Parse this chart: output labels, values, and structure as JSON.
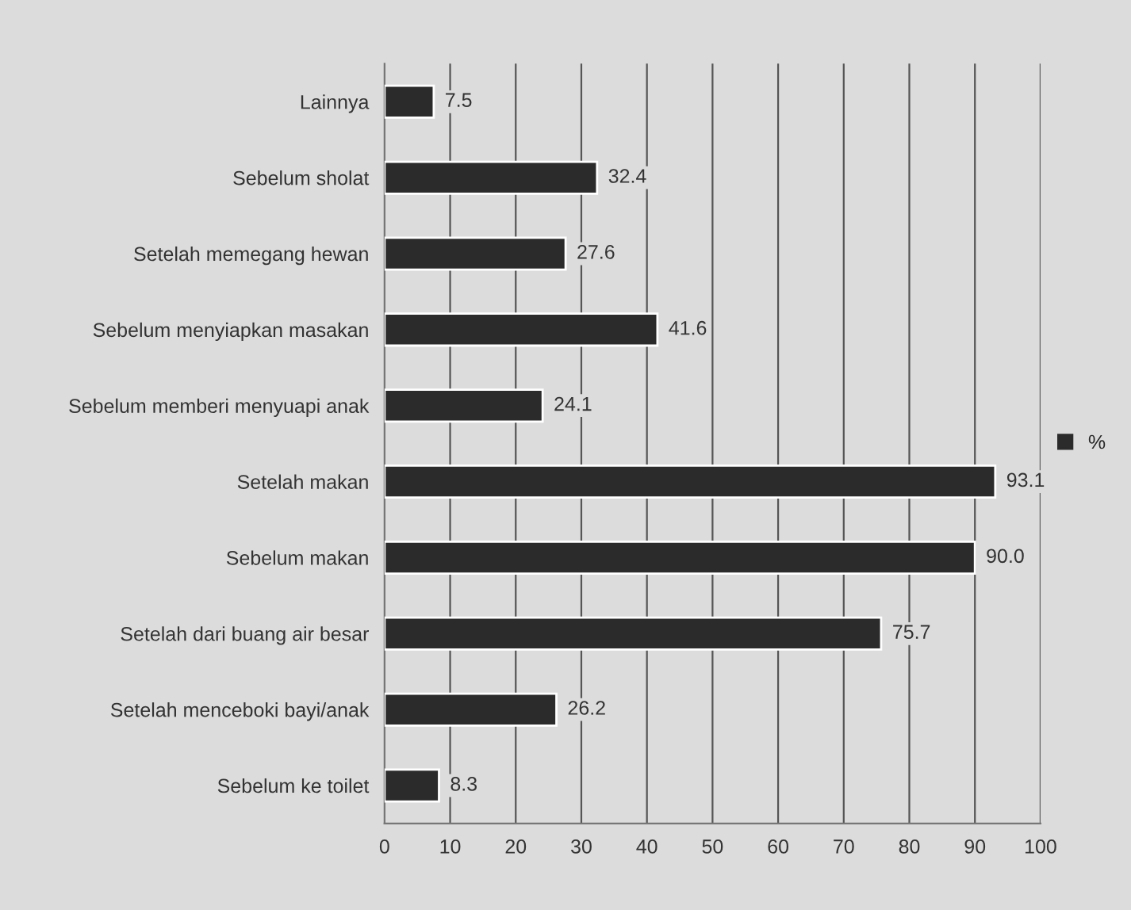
{
  "chart_data": {
    "type": "bar",
    "orientation": "horizontal",
    "categories": [
      "Lainnya",
      "Sebelum sholat",
      "Setelah memegang hewan",
      "Sebelum menyiapkan masakan",
      "Sebelum memberi menyuapi anak",
      "Setelah makan",
      "Sebelum makan",
      "Setelah dari buang air besar",
      "Setelah menceboki bayi/anak",
      "Sebelum ke toilet"
    ],
    "series": [
      {
        "name": "%",
        "color": "#2b2b2b",
        "values": [
          7.5,
          32.4,
          27.6,
          41.6,
          24.1,
          93.1,
          90.0,
          75.7,
          26.2,
          8.3
        ],
        "value_labels": [
          "7.5",
          "32.4",
          "27.6",
          "41.6",
          "24.1",
          "93.1",
          "90.0",
          "75.7",
          "26.2",
          "8.3"
        ]
      }
    ],
    "xlim": [
      0,
      100
    ],
    "xticks": [
      0,
      10,
      20,
      30,
      40,
      50,
      60,
      70,
      80,
      90,
      100
    ],
    "grid": "x",
    "legend": "right"
  }
}
